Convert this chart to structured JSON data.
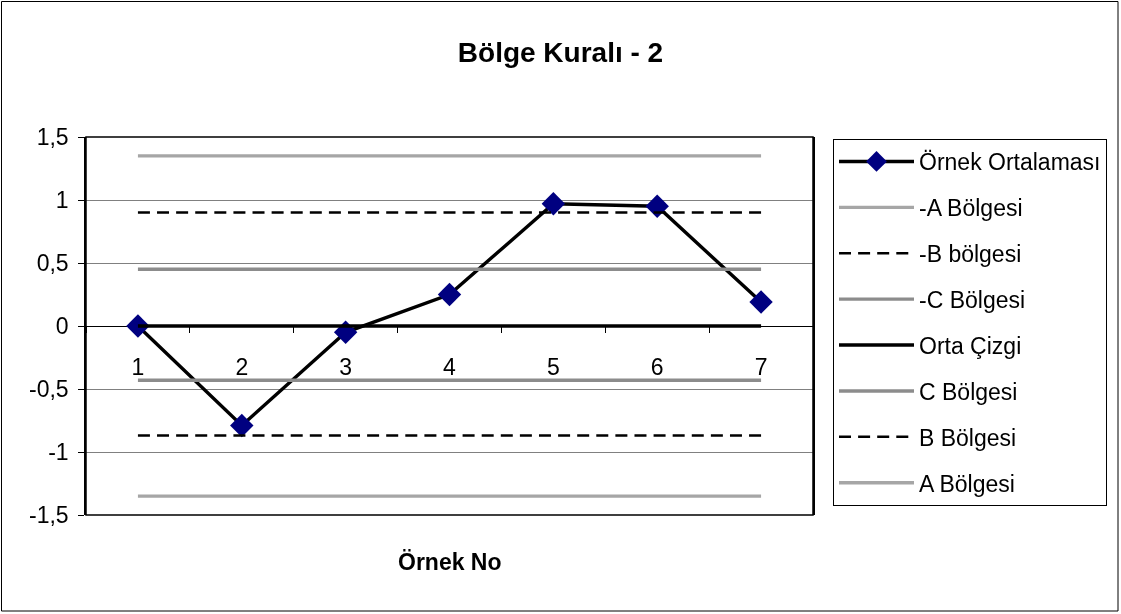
{
  "chart_data": {
    "type": "line",
    "title": "Bölge Kuralı - 2",
    "xlabel": "Örnek No",
    "categories": [
      "1",
      "2",
      "3",
      "4",
      "5",
      "6",
      "7"
    ],
    "ylim": [
      -1.5,
      1.5
    ],
    "yticks": [
      {
        "value": -1.5,
        "label": "-1,5"
      },
      -1,
      {
        "value": -0.5,
        "label": "-0,5"
      },
      0,
      {
        "value": 0.5,
        "label": "0,5"
      },
      1,
      {
        "value": 1.5,
        "label": "1,5"
      }
    ],
    "grid": "y",
    "legend": "right",
    "series": [
      {
        "name": "Örnek Ortalaması",
        "color": "#000000",
        "colors": [
          "#000080",
          "#000080",
          "#000080",
          "#000080",
          "#000080",
          "#000080",
          "#000080"
        ],
        "marker": "diamond",
        "line_style": "solid",
        "values": [
          0,
          -0.79,
          -0.05,
          0.25,
          0.97,
          0.95,
          0.19
        ]
      },
      {
        "name": "-A Bölgesi",
        "color": "#a6a6a6",
        "line_style": "solid",
        "values": [
          1.35,
          1.35,
          1.35,
          1.35,
          1.35,
          1.35,
          1.35
        ]
      },
      {
        "name": "-B bölgesi",
        "color": "#000000",
        "line_style": "dashed",
        "values": [
          0.9,
          0.9,
          0.9,
          0.9,
          0.9,
          0.9,
          0.9
        ]
      },
      {
        "name": "-C Bölgesi",
        "color": "#8c8c8c",
        "line_style": "solid",
        "values": [
          0.45,
          0.45,
          0.45,
          0.45,
          0.45,
          0.45,
          0.45
        ]
      },
      {
        "name": "Orta Çizgi",
        "color": "#000000",
        "line_style": "solid",
        "values": [
          0,
          0,
          0,
          0,
          0,
          0,
          0
        ]
      },
      {
        "name": "C Bölgesi",
        "color": "#8c8c8c",
        "line_style": "solid",
        "values": [
          -0.43,
          -0.43,
          -0.43,
          -0.43,
          -0.43,
          -0.43,
          -0.43
        ]
      },
      {
        "name": "B Bölgesi",
        "color": "#000000",
        "line_style": "dashed",
        "values": [
          -0.87,
          -0.87,
          -0.87,
          -0.87,
          -0.87,
          -0.87,
          -0.87
        ]
      },
      {
        "name": "A Bölgesi",
        "color": "#a6a6a6",
        "line_style": "solid",
        "values": [
          -1.35,
          -1.35,
          -1.35,
          -1.35,
          -1.35,
          -1.35,
          -1.35
        ]
      }
    ]
  }
}
